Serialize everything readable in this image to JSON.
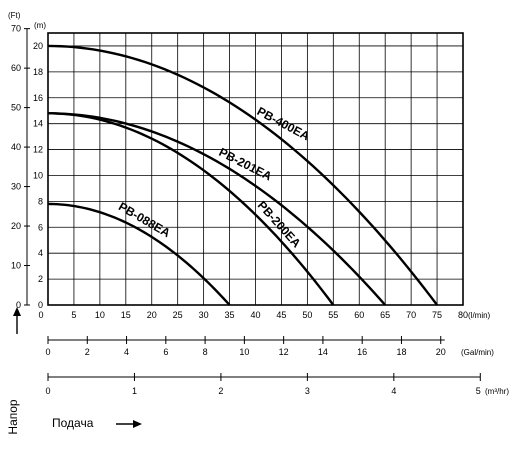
{
  "chart_data": {
    "type": "line",
    "title": "",
    "y_axes": {
      "ft": {
        "unit": "(Ft)",
        "ticks": [
          0,
          10,
          20,
          30,
          40,
          50,
          60,
          70
        ]
      },
      "m": {
        "unit": "(m)",
        "ticks": [
          0,
          2,
          4,
          6,
          8,
          10,
          12,
          14,
          16,
          18,
          20
        ],
        "range": [
          0,
          21
        ]
      }
    },
    "x_axes": {
      "lmin": {
        "unit": "(l/min)",
        "ticks": [
          0,
          5,
          10,
          15,
          20,
          25,
          30,
          35,
          40,
          45,
          50,
          55,
          60,
          65,
          70,
          75,
          80
        ],
        "range": [
          0,
          80
        ]
      },
      "galmin": {
        "unit": "(Gal/min)",
        "ticks": [
          0,
          2,
          4,
          6,
          8,
          10,
          12,
          14,
          16,
          18,
          20
        ]
      },
      "m3hr": {
        "unit": "(m³/hr)",
        "ticks": [
          0,
          1,
          2,
          3,
          4,
          5
        ]
      }
    },
    "series": [
      {
        "name": "PB-088EA",
        "max_head_m": 7.8,
        "max_flow_lmin": 35
      },
      {
        "name": "PB-200EA",
        "max_head_m": 14.8,
        "max_flow_lmin": 55
      },
      {
        "name": "PB-201EA",
        "max_head_m": 14.8,
        "max_flow_lmin": 65
      },
      {
        "name": "PB-400EA",
        "max_head_m": 20.0,
        "max_flow_lmin": 75
      }
    ],
    "ylabel": "Напор",
    "xlabel": "Подача",
    "grid": true
  },
  "icons": {
    "up_arrow": "arrow-up-icon",
    "right_arrow": "arrow-right-icon"
  }
}
